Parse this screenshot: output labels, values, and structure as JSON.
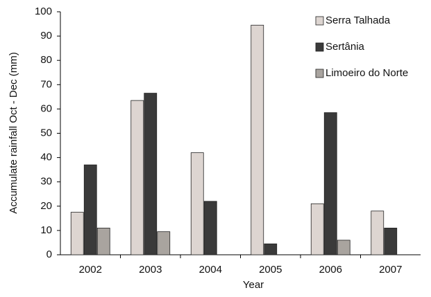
{
  "chart_data": {
    "type": "bar",
    "xlabel": "Year",
    "ylabel": "Accumulate rainfall Oct - Dec (mm)",
    "categories": [
      "2002",
      "2003",
      "2004",
      "2005",
      "2006",
      "2007"
    ],
    "series": [
      {
        "name": "Serra Talhada",
        "color": "#ddd5d1",
        "values": [
          17.5,
          63.5,
          42,
          94.5,
          21,
          18
        ]
      },
      {
        "name": "Sertânia",
        "color": "#3a3a3a",
        "values": [
          37,
          66.5,
          22,
          4.5,
          58.5,
          11
        ]
      },
      {
        "name": "Limoeiro do Norte",
        "color": "#a9a49f",
        "values": [
          11,
          9.5,
          null,
          null,
          6,
          null
        ]
      }
    ],
    "ylim": [
      0,
      100
    ],
    "yticks": [
      0,
      10,
      20,
      30,
      40,
      50,
      60,
      70,
      80,
      90,
      100
    ],
    "grid": false,
    "legend": "upper right"
  }
}
